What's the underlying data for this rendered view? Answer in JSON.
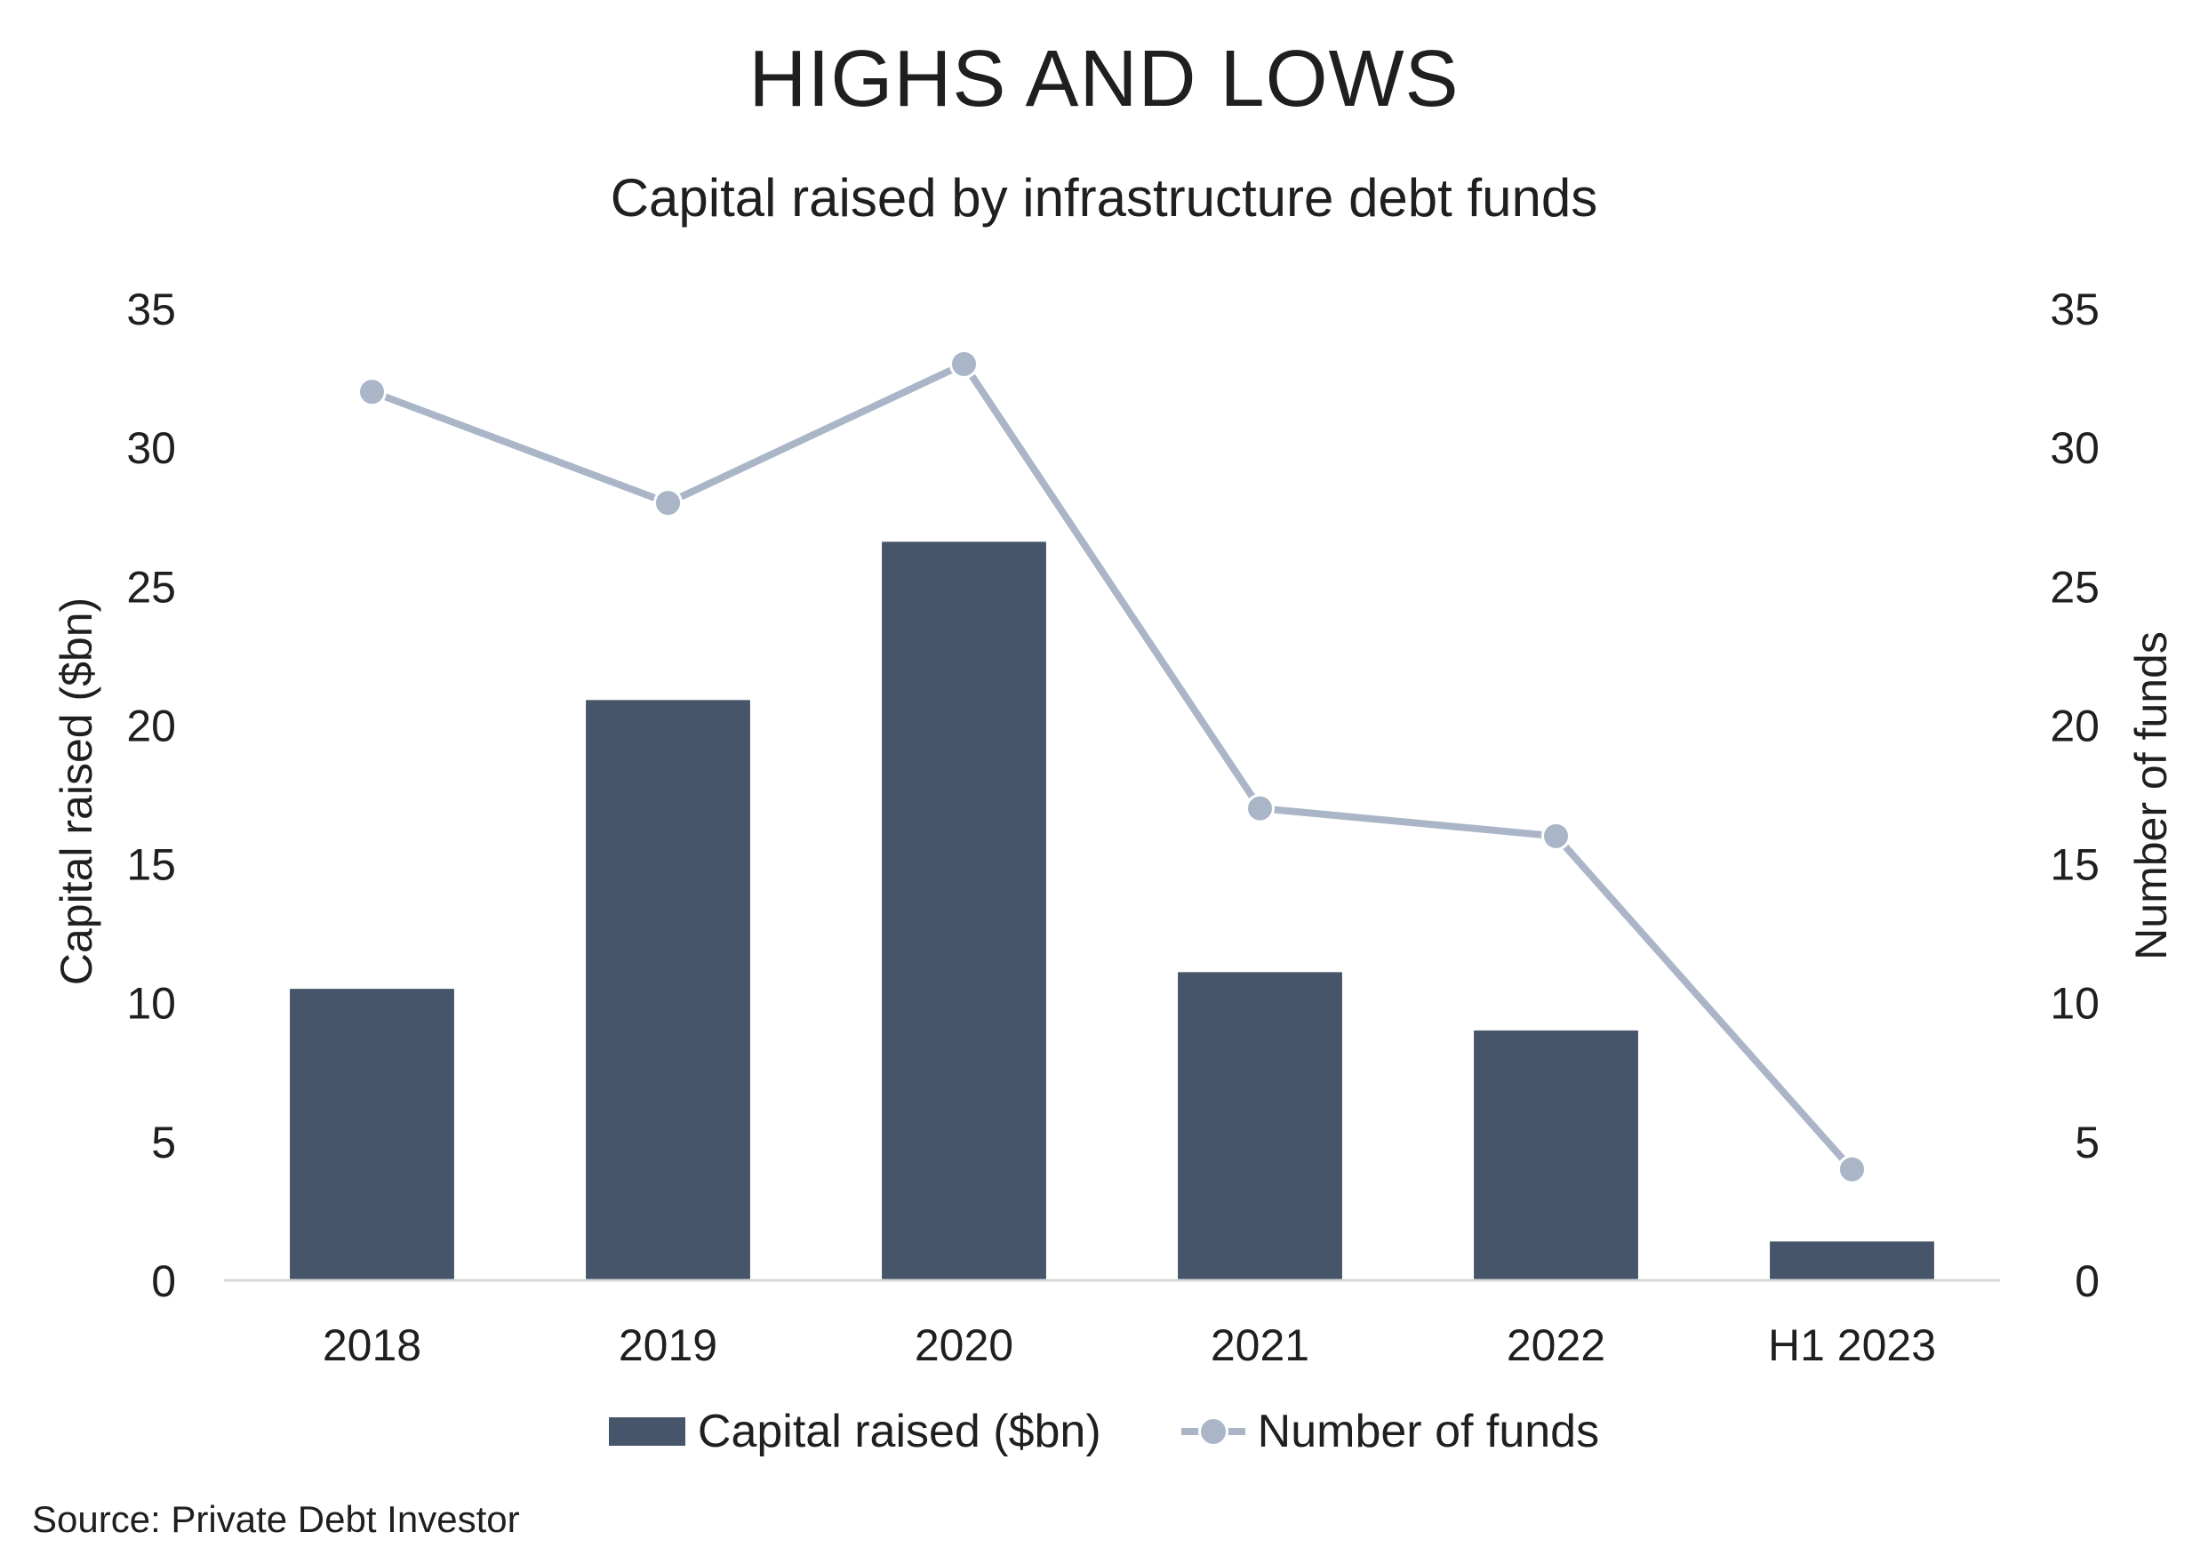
{
  "chart_data": {
    "type": "bar",
    "title": "HIGHS AND LOWS",
    "subtitle": "Capital raised by infrastructure debt funds",
    "categories": [
      "2018",
      "2019",
      "2020",
      "2021",
      "2022",
      "H1 2023"
    ],
    "series": [
      {
        "name": "Capital raised ($bn)",
        "type": "bar",
        "axis": "left",
        "values": [
          10.5,
          20.9,
          26.6,
          11.1,
          9.0,
          1.4
        ]
      },
      {
        "name": "Number of funds",
        "type": "line",
        "axis": "right",
        "values": [
          32,
          28,
          33,
          17,
          16,
          4
        ]
      }
    ],
    "ylabel": "Capital raised ($bn)",
    "y2label": "Number of funds",
    "ylim": [
      0,
      35
    ],
    "y2lim": [
      0,
      35
    ],
    "yticks": [
      "0",
      "5",
      "10",
      "15",
      "20",
      "25",
      "30",
      "35"
    ],
    "y2ticks": [
      "0",
      "5",
      "10",
      "15",
      "20",
      "25",
      "30",
      "35"
    ],
    "grid": false,
    "legend": "bottom",
    "colors": {
      "bar": "#465569",
      "line": "#aab6c8",
      "axis": "#d9d9d9"
    }
  },
  "source": "Source: Private Debt Investor"
}
